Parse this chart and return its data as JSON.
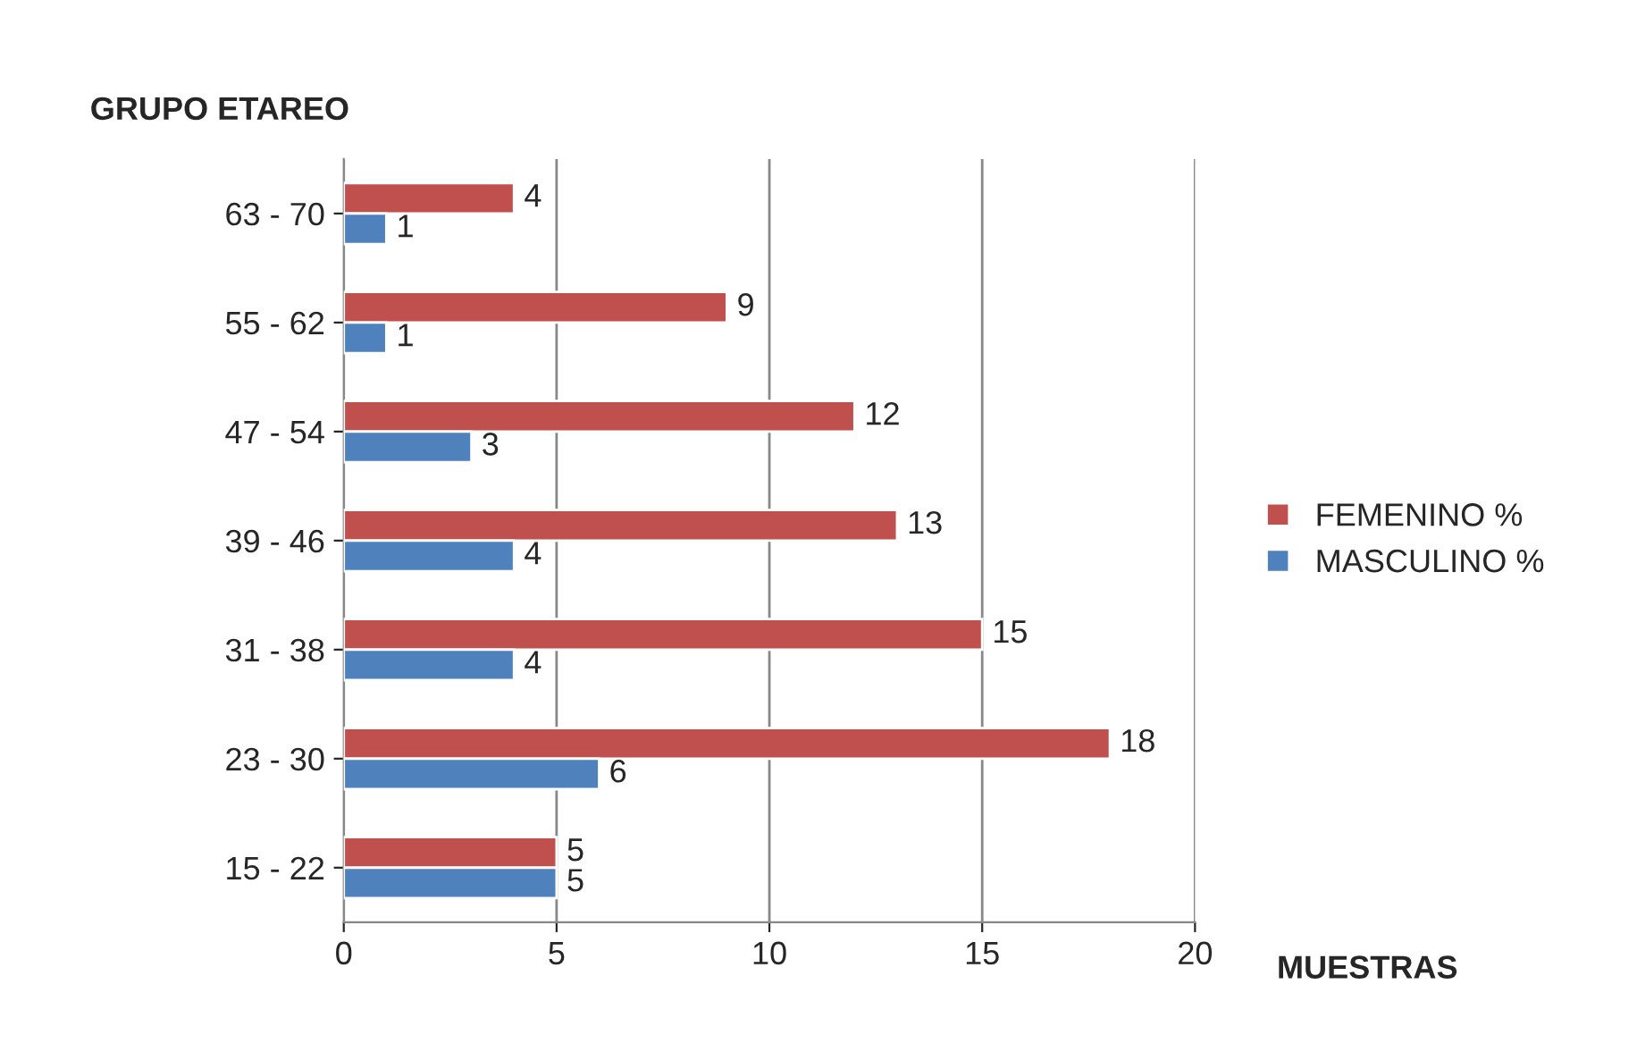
{
  "chart_data": {
    "type": "bar",
    "orientation": "horizontal",
    "xlabel": "MUESTRAS",
    "ylabel": "GRUPO ETAREO",
    "categories": [
      "63 - 70",
      "55 - 62",
      "47 - 54",
      "39 - 46",
      "31 - 38",
      "23 - 30",
      "15 - 22"
    ],
    "series": [
      {
        "name": "FEMENINO %",
        "color": "#c0504d",
        "values": [
          4,
          9,
          12,
          13,
          15,
          18,
          5
        ]
      },
      {
        "name": "MASCULINO %",
        "color": "#4f81bd",
        "values": [
          1,
          1,
          3,
          4,
          4,
          6,
          5
        ]
      }
    ],
    "xlim": [
      0,
      20
    ],
    "xticks": [
      0,
      5,
      10,
      15,
      20
    ],
    "grid": "x",
    "legend": "right",
    "data_labels": true
  }
}
